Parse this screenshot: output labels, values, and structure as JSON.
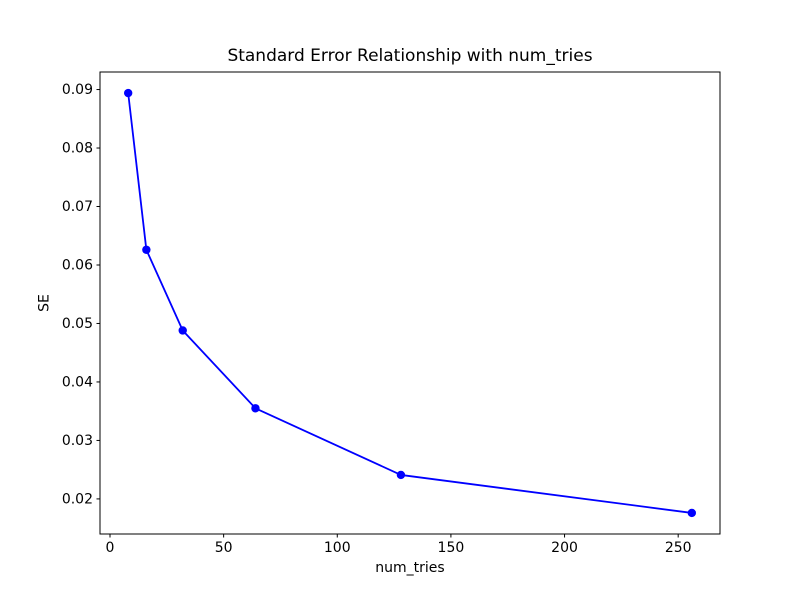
{
  "figure": {
    "background_color": "#ffffff",
    "text_color": "#000000"
  },
  "chart_data": {
    "type": "line",
    "title": "Standard Error Relationship with num_tries",
    "xlabel": "num_tries",
    "ylabel": "SE",
    "x": [
      8,
      16,
      32,
      64,
      128,
      256
    ],
    "y": [
      0.0894,
      0.0626,
      0.0488,
      0.0355,
      0.0241,
      0.0176
    ],
    "series_color": "#0000ff",
    "marker": "o",
    "marker_radius": 4.2,
    "line_width": 1.8,
    "xlim": [
      -4.4,
      268.4
    ],
    "ylim": [
      0.014,
      0.093
    ],
    "x_ticks": [
      0,
      50,
      100,
      150,
      200,
      250
    ],
    "x_tick_labels": [
      "0",
      "50",
      "100",
      "150",
      "200",
      "250"
    ],
    "y_ticks": [
      0.02,
      0.03,
      0.04,
      0.05,
      0.06,
      0.07,
      0.08,
      0.09
    ],
    "y_tick_labels": [
      "0.02",
      "0.03",
      "0.04",
      "0.05",
      "0.06",
      "0.07",
      "0.08",
      "0.09"
    ],
    "grid": false,
    "legend": null,
    "axes_color": "#000000"
  }
}
